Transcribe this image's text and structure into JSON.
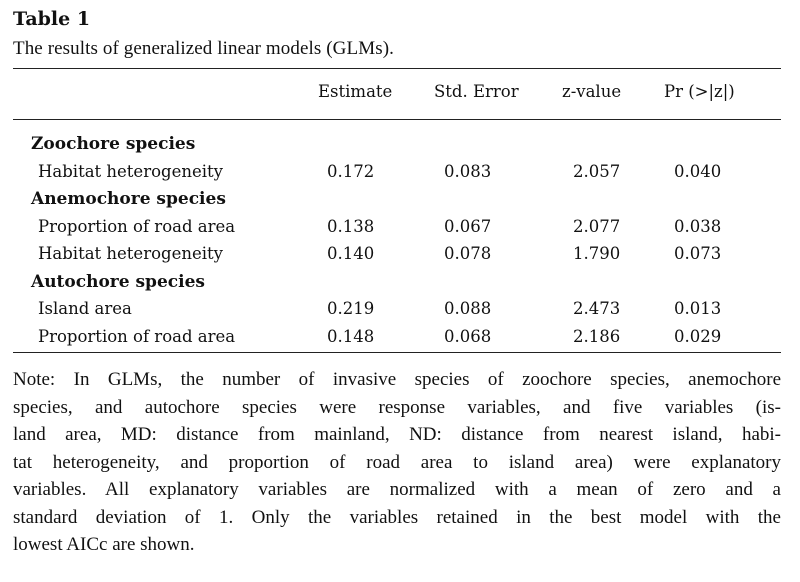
{
  "table": {
    "label": "Table 1",
    "caption": "The results of generalized linear models (GLMs).",
    "columns": [
      "Estimate",
      "Std. Error",
      "z-value",
      "Pr (>|z|)"
    ],
    "groups": [
      {
        "name": "Zoochore species",
        "rows": [
          {
            "label": "Habitat heterogeneity",
            "values": [
              "0.172",
              "0.083",
              "2.057",
              "0.040"
            ]
          }
        ]
      },
      {
        "name": "Anemochore species",
        "rows": [
          {
            "label": "Proportion of road area",
            "values": [
              "0.138",
              "0.067",
              "2.077",
              "0.038"
            ]
          },
          {
            "label": "Habitat heterogeneity",
            "values": [
              "0.140",
              "0.078",
              "1.790",
              "0.073"
            ]
          }
        ]
      },
      {
        "name": "Autochore species",
        "rows": [
          {
            "label": "Island area",
            "values": [
              "0.219",
              "0.088",
              "2.473",
              "0.013"
            ]
          },
          {
            "label": "Proportion of road area",
            "values": [
              "0.148",
              "0.068",
              "2.186",
              "0.029"
            ]
          }
        ]
      }
    ]
  },
  "note": {
    "lines": [
      "Note: In GLMs, the number of invasive species of zoochore species, anemochore",
      "species, and autochore species were response variables, and five variables (is-",
      "land area, MD: distance from mainland, ND: distance from nearest island, habi-",
      "tat heterogeneity, and proportion of road area to island area) were explanatory",
      "variables. All explanatory variables are normalized with a mean of zero and a",
      "standard deviation of 1. Only the variables retained in the best model with the",
      "lowest AICc are shown."
    ]
  }
}
